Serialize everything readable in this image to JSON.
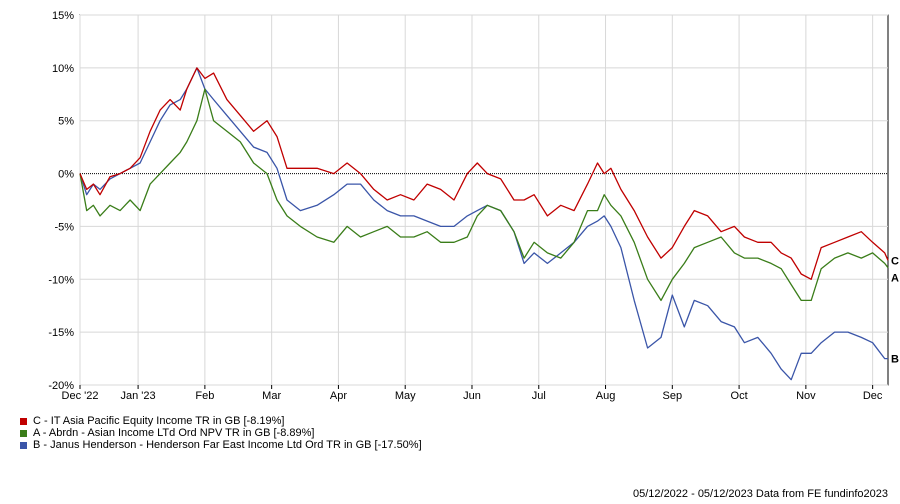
{
  "chart_data": {
    "type": "line",
    "title": "",
    "xlabel": "",
    "ylabel": "",
    "ylim": [
      -20,
      15
    ],
    "yticks": [
      15,
      10,
      5,
      0,
      -5,
      -10,
      -15,
      -20
    ],
    "ytick_labels": [
      "15%",
      "10%",
      "5%",
      "0%",
      "-5%",
      "-10%",
      "-15%",
      "-20%"
    ],
    "x_range_months": [
      0,
      12.1
    ],
    "xtick_labels": [
      "Dec '22",
      "Jan '23",
      "Feb",
      "Mar",
      "Apr",
      "May",
      "Jun",
      "Jul",
      "Aug",
      "Sep",
      "Oct",
      "Nov",
      "Dec"
    ],
    "xtick_months": [
      0,
      0.87,
      1.87,
      2.87,
      3.87,
      4.87,
      5.87,
      6.87,
      7.87,
      8.87,
      9.87,
      10.87,
      11.87
    ],
    "grid": true,
    "zero_line": true,
    "legend_position": "bottom-left",
    "series": [
      {
        "name": "C - IT Asia Pacific Equity Income TR in GB [-8.19%]",
        "end_label": "C",
        "color": "#c00000",
        "x": [
          0,
          0.1,
          0.2,
          0.3,
          0.45,
          0.6,
          0.75,
          0.9,
          1.05,
          1.2,
          1.35,
          1.5,
          1.6,
          1.75,
          1.87,
          2.0,
          2.2,
          2.4,
          2.6,
          2.8,
          2.95,
          3.1,
          3.3,
          3.55,
          3.8,
          4.0,
          4.2,
          4.4,
          4.6,
          4.8,
          5.0,
          5.2,
          5.4,
          5.6,
          5.8,
          5.95,
          6.1,
          6.3,
          6.5,
          6.65,
          6.8,
          7.0,
          7.2,
          7.4,
          7.6,
          7.75,
          7.85,
          7.95,
          8.1,
          8.3,
          8.5,
          8.7,
          8.87,
          9.05,
          9.2,
          9.4,
          9.6,
          9.8,
          9.95,
          10.15,
          10.35,
          10.5,
          10.65,
          10.8,
          10.95,
          11.1,
          11.3,
          11.5,
          11.7,
          11.87,
          12.05,
          12.1
        ],
        "y": [
          0,
          -1.5,
          -1,
          -2,
          -0.3,
          0,
          0.5,
          1.5,
          4,
          6,
          7,
          6,
          8,
          10,
          9,
          9.5,
          7,
          5.5,
          4,
          5,
          3.5,
          0.5,
          0.5,
          0.5,
          0,
          1,
          0,
          -1.5,
          -2.5,
          -2,
          -2.5,
          -1,
          -1.5,
          -2.5,
          0,
          1,
          0,
          -0.5,
          -2.5,
          -2.5,
          -2,
          -4,
          -3,
          -3.5,
          -1,
          1,
          0,
          0.5,
          -1.5,
          -3.5,
          -6,
          -8,
          -7,
          -5,
          -3.5,
          -4,
          -5.5,
          -5,
          -6,
          -6.5,
          -6.5,
          -7.5,
          -8,
          -9.5,
          -10,
          -7,
          -6.5,
          -6,
          -5.5,
          -6.5,
          -7.5,
          -8.2
        ]
      },
      {
        "name": "A - Abrdn - Asian Income LTd Ord NPV TR in GB [-8.89%]",
        "end_label": "A",
        "color": "#3a7d19",
        "x": [
          0,
          0.1,
          0.2,
          0.3,
          0.45,
          0.6,
          0.75,
          0.9,
          1.05,
          1.2,
          1.35,
          1.5,
          1.6,
          1.75,
          1.87,
          2.0,
          2.2,
          2.4,
          2.6,
          2.8,
          2.95,
          3.1,
          3.3,
          3.55,
          3.8,
          4.0,
          4.2,
          4.4,
          4.6,
          4.8,
          5.0,
          5.2,
          5.4,
          5.6,
          5.8,
          5.95,
          6.1,
          6.3,
          6.5,
          6.65,
          6.8,
          7.0,
          7.2,
          7.4,
          7.6,
          7.75,
          7.85,
          7.95,
          8.1,
          8.3,
          8.5,
          8.7,
          8.87,
          9.05,
          9.2,
          9.4,
          9.6,
          9.8,
          9.95,
          10.15,
          10.35,
          10.5,
          10.65,
          10.8,
          10.95,
          11.1,
          11.3,
          11.5,
          11.7,
          11.87,
          12.05,
          12.1
        ],
        "y": [
          0,
          -3.5,
          -3,
          -4,
          -3,
          -3.5,
          -2.5,
          -3.5,
          -1,
          0,
          1,
          2,
          3,
          5,
          8,
          5,
          4,
          3,
          1,
          0,
          -2.5,
          -4,
          -5,
          -6,
          -6.5,
          -5,
          -6,
          -5.5,
          -5,
          -6,
          -6,
          -5.5,
          -6.5,
          -6.5,
          -6,
          -4,
          -3,
          -3.5,
          -5.5,
          -8,
          -6.5,
          -7.5,
          -8,
          -6.5,
          -3.5,
          -3.5,
          -2,
          -3,
          -4,
          -6.5,
          -10,
          -12,
          -10,
          -8.5,
          -7,
          -6.5,
          -6,
          -7.5,
          -8,
          -8,
          -8.5,
          -9,
          -10.5,
          -12,
          -12,
          -9,
          -8,
          -7.5,
          -8,
          -7.5,
          -8.5,
          -8.9
        ]
      },
      {
        "name": "B - Janus Henderson - Henderson Far East Income Ltd Ord TR in GB [-17.50%]",
        "end_label": "B",
        "color": "#3a55a8",
        "x": [
          0,
          0.1,
          0.2,
          0.3,
          0.45,
          0.6,
          0.75,
          0.9,
          1.05,
          1.2,
          1.35,
          1.5,
          1.6,
          1.75,
          1.87,
          2.0,
          2.2,
          2.4,
          2.6,
          2.8,
          2.95,
          3.1,
          3.3,
          3.55,
          3.8,
          4.0,
          4.2,
          4.4,
          4.6,
          4.8,
          5.0,
          5.2,
          5.4,
          5.6,
          5.8,
          5.95,
          6.1,
          6.3,
          6.5,
          6.65,
          6.8,
          7.0,
          7.2,
          7.4,
          7.6,
          7.75,
          7.85,
          7.95,
          8.1,
          8.3,
          8.5,
          8.7,
          8.87,
          9.05,
          9.2,
          9.4,
          9.6,
          9.8,
          9.95,
          10.15,
          10.35,
          10.5,
          10.65,
          10.8,
          10.95,
          11.1,
          11.3,
          11.5,
          11.7,
          11.87,
          12.05,
          12.1
        ],
        "y": [
          0,
          -2,
          -1,
          -1.5,
          -0.5,
          0,
          0.5,
          1,
          3,
          5,
          6.5,
          7,
          8,
          10,
          8,
          7,
          5.5,
          4,
          2.5,
          2,
          0.5,
          -2.5,
          -3.5,
          -3,
          -2,
          -1,
          -1,
          -2.5,
          -3.5,
          -4,
          -4,
          -4.5,
          -5,
          -5,
          -4,
          -3.5,
          -3,
          -3.5,
          -5.5,
          -8.5,
          -7.5,
          -8.5,
          -7.5,
          -6.5,
          -5,
          -4.5,
          -4,
          -5,
          -7,
          -12,
          -16.5,
          -15.5,
          -11.5,
          -14.5,
          -12,
          -12.5,
          -14,
          -14.5,
          -16,
          -15.5,
          -17,
          -18.5,
          -19.5,
          -17,
          -17,
          -16,
          -15,
          -15,
          -15.5,
          -16,
          -17.5,
          -17.5
        ]
      }
    ]
  },
  "legend": [
    {
      "label": "C - IT Asia Pacific Equity Income TR in GB [-8.19%]",
      "color": "#c00000"
    },
    {
      "label": "A - Abrdn - Asian Income LTd Ord NPV TR in GB [-8.89%]",
      "color": "#3a7d19"
    },
    {
      "label": "B - Janus Henderson - Henderson Far East Income Ltd Ord TR in GB [-17.50%]",
      "color": "#3a55a8"
    }
  ],
  "footer": "05/12/2022 - 05/12/2023 Data from FE fundinfo2023"
}
